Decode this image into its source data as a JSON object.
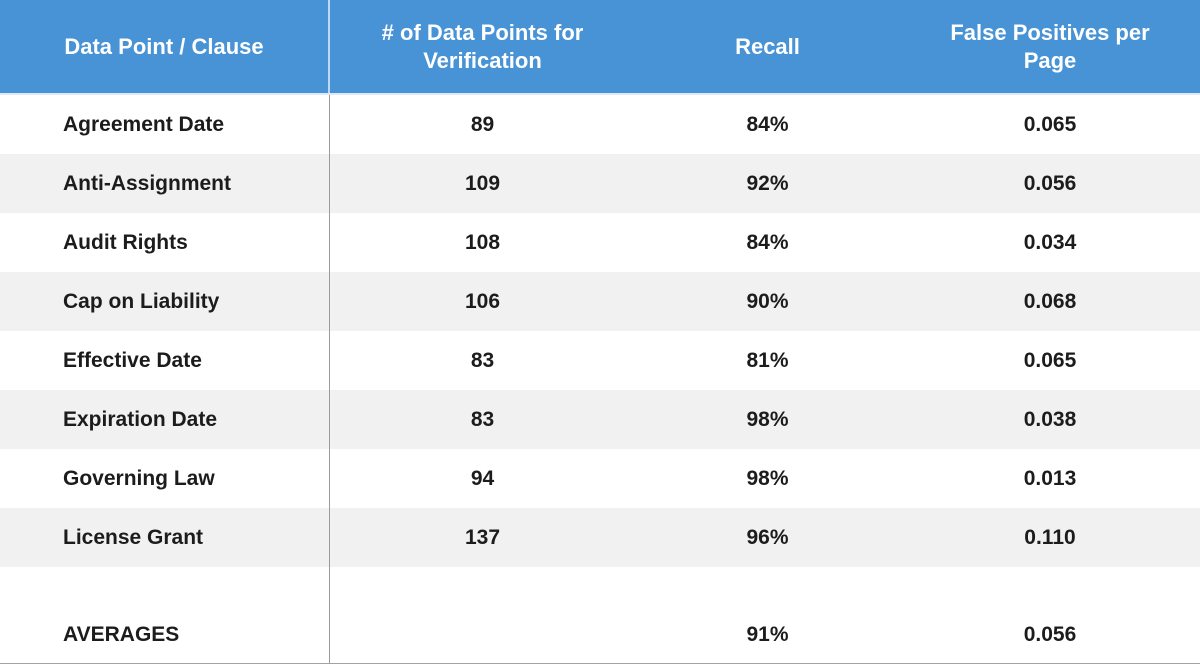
{
  "table": {
    "columns": [
      {
        "label": "Data Point / Clause"
      },
      {
        "label": "# of Data Points for Verification"
      },
      {
        "label": "Recall"
      },
      {
        "label": "False Positives per Page"
      }
    ],
    "rows": [
      {
        "clause": "Agreement Date",
        "data_points": "89",
        "recall": "84%",
        "false_positives": "0.065"
      },
      {
        "clause": "Anti-Assignment",
        "data_points": "109",
        "recall": "92%",
        "false_positives": "0.056"
      },
      {
        "clause": "Audit Rights",
        "data_points": "108",
        "recall": "84%",
        "false_positives": "0.034"
      },
      {
        "clause": "Cap on Liability",
        "data_points": "106",
        "recall": "90%",
        "false_positives": "0.068"
      },
      {
        "clause": "Effective Date",
        "data_points": "83",
        "recall": "81%",
        "false_positives": "0.065"
      },
      {
        "clause": "Expiration Date",
        "data_points": "83",
        "recall": "98%",
        "false_positives": "0.038"
      },
      {
        "clause": "Governing Law",
        "data_points": "94",
        "recall": "98%",
        "false_positives": "0.013"
      },
      {
        "clause": "License Grant",
        "data_points": "137",
        "recall": "96%",
        "false_positives": "0.110"
      }
    ],
    "averages": {
      "label": "AVERAGES",
      "data_points": "",
      "recall": "91%",
      "false_positives": "0.056"
    }
  },
  "colors": {
    "header_background": "#4793d6",
    "header_text": "#ffffff",
    "row_stripe": "#f1f1f1",
    "row_white": "#ffffff",
    "body_text": "#1c1c1c",
    "outer_border": "#a3a3a3",
    "column_divider": "#9b9b9b"
  },
  "chart_data": {
    "type": "table",
    "title": "",
    "columns": [
      "Data Point / Clause",
      "# of Data Points for Verification",
      "Recall",
      "False Positives per Page"
    ],
    "rows": [
      [
        "Agreement Date",
        89,
        "84%",
        0.065
      ],
      [
        "Anti-Assignment",
        109,
        "92%",
        0.056
      ],
      [
        "Audit Rights",
        108,
        "84%",
        0.034
      ],
      [
        "Cap on Liability",
        106,
        "90%",
        0.068
      ],
      [
        "Effective Date",
        83,
        "81%",
        0.065
      ],
      [
        "Expiration Date",
        83,
        "98%",
        0.038
      ],
      [
        "Governing Law",
        94,
        "98%",
        0.013
      ],
      [
        "License Grant",
        137,
        "96%",
        0.11
      ],
      [
        "AVERAGES",
        null,
        "91%",
        0.056
      ]
    ]
  }
}
